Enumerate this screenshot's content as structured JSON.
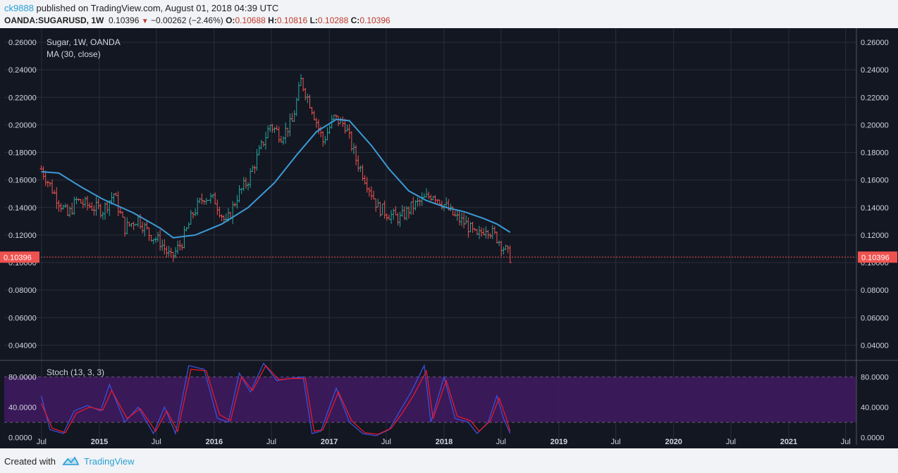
{
  "header": {
    "user": "ck9888",
    "published_text": "published on TradingView.com, August 01, 2018 04:39 UTC",
    "symbol": "OANDA:SUGARUSD, 1W",
    "last": "0.10396",
    "change": "−0.00262 (−2.46%)",
    "o_label": "O:",
    "o_value": "0.10688",
    "h_label": "H:",
    "h_value": "0.10816",
    "l_label": "L:",
    "l_value": "0.10288",
    "c_label": "C:",
    "c_value": "0.10396"
  },
  "footer": {
    "created_with": "Created with",
    "brand": "TradingView"
  },
  "colors": {
    "background": "#131722",
    "grid": "#2a2e39",
    "up": "#26a69a",
    "down": "#ef5350",
    "ma": "#3c9ad6",
    "stoch_k": "#3c4fd6",
    "stoch_d": "#e8192c",
    "stoch_band": "#3e1a5e",
    "last_price": "#ef5350"
  },
  "chart_data": [
    {
      "type": "ohlc",
      "title": "Sugar, 1W, OANDA",
      "indicator_label": "MA (30, close)",
      "ylim": [
        0.03,
        0.26
      ],
      "y_ticks": [
        "0.04000",
        "0.06000",
        "0.08000",
        "0.10000",
        "0.12000",
        "0.14000",
        "0.16000",
        "0.18000",
        "0.20000",
        "0.22000",
        "0.24000",
        "0.26000"
      ],
      "last_price_label": "0.10396",
      "last_price": 0.10396,
      "x_ticks": [
        "Jul",
        "2015",
        "Jul",
        "2016",
        "Jul",
        "2017",
        "Jul",
        "2018",
        "Jul",
        "2019",
        "Jul",
        "2020",
        "Jul",
        "2021",
        "Jul"
      ],
      "x_tick_dates": [
        "2014-07-01",
        "2015-01-01",
        "2015-07-01",
        "2016-01-01",
        "2016-07-01",
        "2017-01-01",
        "2017-07-01",
        "2018-01-01",
        "2018-07-01",
        "2019-01-01",
        "2019-07-01",
        "2020-01-01",
        "2020-07-01",
        "2021-01-01",
        "2021-07-01"
      ],
      "close_path": [
        [
          "2014-06-30",
          0.168
        ],
        [
          "2014-08-11",
          0.15
        ],
        [
          "2014-09-22",
          0.134
        ],
        [
          "2014-10-20",
          0.145
        ],
        [
          "2014-12-01",
          0.141
        ],
        [
          "2015-01-12",
          0.138
        ],
        [
          "2015-02-16",
          0.15
        ],
        [
          "2015-03-23",
          0.125
        ],
        [
          "2015-05-04",
          0.132
        ],
        [
          "2015-06-08",
          0.121
        ],
        [
          "2015-07-13",
          0.115
        ],
        [
          "2015-08-17",
          0.103
        ],
        [
          "2015-09-21",
          0.115
        ],
        [
          "2015-10-26",
          0.136
        ],
        [
          "2015-11-30",
          0.148
        ],
        [
          "2016-01-04",
          0.145
        ],
        [
          "2016-02-08",
          0.128
        ],
        [
          "2016-03-14",
          0.148
        ],
        [
          "2016-04-18",
          0.16
        ],
        [
          "2016-05-23",
          0.18
        ],
        [
          "2016-06-27",
          0.2
        ],
        [
          "2016-08-01",
          0.192
        ],
        [
          "2016-09-05",
          0.202
        ],
        [
          "2016-10-03",
          0.232
        ],
        [
          "2016-11-07",
          0.212
        ],
        [
          "2016-12-12",
          0.188
        ],
        [
          "2017-01-16",
          0.205
        ],
        [
          "2017-02-20",
          0.2
        ],
        [
          "2017-03-27",
          0.175
        ],
        [
          "2017-05-01",
          0.158
        ],
        [
          "2017-06-05",
          0.14
        ],
        [
          "2017-07-10",
          0.135
        ],
        [
          "2017-08-14",
          0.132
        ],
        [
          "2017-09-18",
          0.14
        ],
        [
          "2017-10-23",
          0.145
        ],
        [
          "2017-11-27",
          0.15
        ],
        [
          "2018-01-01",
          0.142
        ],
        [
          "2018-02-05",
          0.133
        ],
        [
          "2018-03-12",
          0.128
        ],
        [
          "2018-04-16",
          0.118
        ],
        [
          "2018-05-14",
          0.126
        ],
        [
          "2018-06-18",
          0.118
        ],
        [
          "2018-07-30",
          0.104
        ]
      ],
      "ma_path": [
        [
          "2014-06-30",
          0.166
        ],
        [
          "2014-08-25",
          0.165
        ],
        [
          "2014-11-03",
          0.155
        ],
        [
          "2015-01-12",
          0.146
        ],
        [
          "2015-04-20",
          0.136
        ],
        [
          "2015-07-13",
          0.125
        ],
        [
          "2015-08-24",
          0.118
        ],
        [
          "2015-11-02",
          0.12
        ],
        [
          "2016-01-25",
          0.128
        ],
        [
          "2016-04-18",
          0.14
        ],
        [
          "2016-07-11",
          0.158
        ],
        [
          "2016-09-19",
          0.178
        ],
        [
          "2016-11-21",
          0.195
        ],
        [
          "2017-01-23",
          0.204
        ],
        [
          "2017-03-06",
          0.203
        ],
        [
          "2017-05-15",
          0.185
        ],
        [
          "2017-07-10",
          0.168
        ],
        [
          "2017-09-11",
          0.152
        ],
        [
          "2017-11-06",
          0.145
        ],
        [
          "2018-01-08",
          0.14
        ],
        [
          "2018-03-05",
          0.137
        ],
        [
          "2018-05-07",
          0.132
        ],
        [
          "2018-06-18",
          0.128
        ],
        [
          "2018-07-30",
          0.122
        ]
      ]
    },
    {
      "type": "line",
      "title": "Stoch (13, 3, 3)",
      "ylim": [
        -10,
        100
      ],
      "y_ticks": [
        "0.0000",
        "40.0000",
        "80.0000"
      ],
      "band": [
        20,
        80
      ],
      "series": [
        {
          "key": "k",
          "path": [
            [
              "2014-06-30",
              55
            ],
            [
              "2014-07-28",
              10
            ],
            [
              "2014-09-08",
              5
            ],
            [
              "2014-10-13",
              35
            ],
            [
              "2014-11-24",
              42
            ],
            [
              "2015-01-05",
              35
            ],
            [
              "2015-02-02",
              70
            ],
            [
              "2015-03-23",
              20
            ],
            [
              "2015-05-04",
              40
            ],
            [
              "2015-06-22",
              5
            ],
            [
              "2015-07-27",
              40
            ],
            [
              "2015-08-31",
              5
            ],
            [
              "2015-10-12",
              95
            ],
            [
              "2015-11-30",
              90
            ],
            [
              "2016-01-11",
              25
            ],
            [
              "2016-02-15",
              20
            ],
            [
              "2016-03-21",
              85
            ],
            [
              "2016-04-25",
              60
            ],
            [
              "2016-06-06",
              98
            ],
            [
              "2016-07-18",
              75
            ],
            [
              "2016-08-29",
              78
            ],
            [
              "2016-10-10",
              80
            ],
            [
              "2016-11-07",
              5
            ],
            [
              "2016-12-05",
              8
            ],
            [
              "2017-01-23",
              65
            ],
            [
              "2017-03-06",
              20
            ],
            [
              "2017-04-17",
              5
            ],
            [
              "2017-05-29",
              2
            ],
            [
              "2017-07-10",
              10
            ],
            [
              "2017-08-14",
              35
            ],
            [
              "2017-09-18",
              60
            ],
            [
              "2017-10-30",
              95
            ],
            [
              "2017-11-20",
              20
            ],
            [
              "2018-01-01",
              80
            ],
            [
              "2018-02-05",
              25
            ],
            [
              "2018-03-19",
              20
            ],
            [
              "2018-04-16",
              5
            ],
            [
              "2018-05-21",
              20
            ],
            [
              "2018-06-18",
              55
            ],
            [
              "2018-07-09",
              25
            ],
            [
              "2018-07-30",
              5
            ]
          ]
        },
        {
          "key": "d",
          "path": [
            [
              "2014-06-30",
              45
            ],
            [
              "2014-08-04",
              12
            ],
            [
              "2014-09-15",
              6
            ],
            [
              "2014-10-20",
              32
            ],
            [
              "2014-12-01",
              40
            ],
            [
              "2015-01-12",
              36
            ],
            [
              "2015-02-09",
              62
            ],
            [
              "2015-03-30",
              25
            ],
            [
              "2015-05-11",
              38
            ],
            [
              "2015-06-29",
              8
            ],
            [
              "2015-08-03",
              35
            ],
            [
              "2015-09-07",
              8
            ],
            [
              "2015-10-19",
              90
            ],
            [
              "2015-12-07",
              88
            ],
            [
              "2016-01-18",
              30
            ],
            [
              "2016-02-22",
              22
            ],
            [
              "2016-03-28",
              80
            ],
            [
              "2016-05-02",
              62
            ],
            [
              "2016-06-13",
              95
            ],
            [
              "2016-07-25",
              76
            ],
            [
              "2016-09-05",
              78
            ],
            [
              "2016-10-17",
              78
            ],
            [
              "2016-11-14",
              8
            ],
            [
              "2016-12-12",
              10
            ],
            [
              "2017-01-30",
              60
            ],
            [
              "2017-03-13",
              22
            ],
            [
              "2017-04-24",
              6
            ],
            [
              "2017-06-05",
              4
            ],
            [
              "2017-07-17",
              12
            ],
            [
              "2017-08-21",
              32
            ],
            [
              "2017-09-25",
              55
            ],
            [
              "2017-11-06",
              88
            ],
            [
              "2017-11-27",
              25
            ],
            [
              "2018-01-08",
              75
            ],
            [
              "2018-02-12",
              28
            ],
            [
              "2018-03-26",
              22
            ],
            [
              "2018-04-23",
              8
            ],
            [
              "2018-05-28",
              22
            ],
            [
              "2018-06-25",
              52
            ],
            [
              "2018-07-16",
              28
            ],
            [
              "2018-07-30",
              8
            ]
          ]
        }
      ]
    }
  ]
}
